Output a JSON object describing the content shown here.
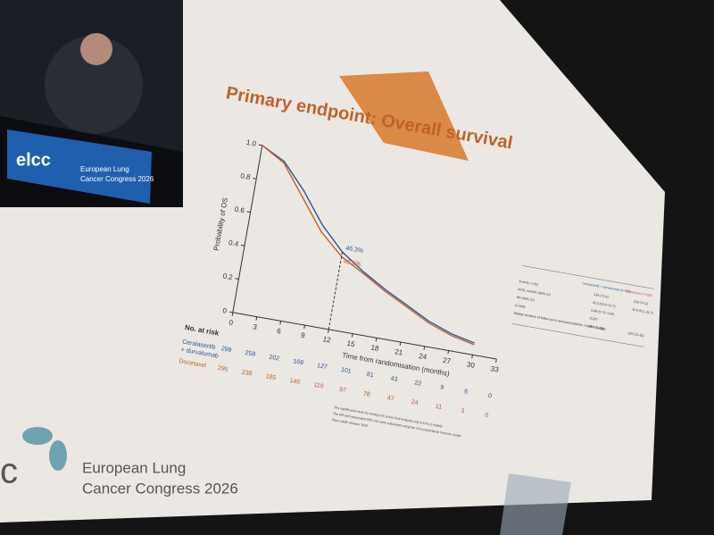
{
  "speaker_screen": {
    "logo": "elcc",
    "logo_text": [
      "European Lung",
      "Cancer Congress 2026"
    ]
  },
  "slide": {
    "title": "Primary endpoint: Overall survival",
    "footnotes": [
      "The significance level for testing OS at this final analysis was 4.15% (2-sided)",
      "The HR and associated 95% CIs were calculated using the Cox proportional hazards model",
      "Data cutoff: October 2025"
    ],
    "logo_text": [
      "European Lung",
      "Cancer Congress 2026"
    ]
  },
  "chart_data": {
    "type": "line",
    "ylabel": "Probability of OS",
    "xlabel": "Time from randomisation (months)",
    "x": [
      0,
      3,
      6,
      9,
      12,
      15,
      18,
      21,
      24,
      27,
      30,
      33
    ],
    "xlim": [
      0,
      33
    ],
    "xticks": [
      0,
      3,
      6,
      9,
      12,
      15,
      18,
      21,
      24,
      27,
      30,
      33
    ],
    "ylim": [
      0,
      1
    ],
    "yticks": [
      0,
      0.2,
      0.4,
      0.6,
      0.8,
      {
        "value": 1,
        "label": "1.0"
      }
    ],
    "series": [
      {
        "name": "Ceralasertib + durvalumab",
        "color": "#2f5597",
        "values": [
          1,
          0.93,
          0.78,
          0.6,
          0.463,
          0.37,
          0.29,
          0.22,
          0.15,
          0.1,
          0.07,
          null
        ]
      },
      {
        "name": "Docetaxel",
        "color": "#c0622a",
        "values": [
          1,
          0.92,
          0.74,
          0.56,
          0.436,
          0.36,
          0.28,
          0.21,
          0.14,
          0.09,
          0.06,
          null
        ]
      }
    ],
    "annotations": [
      {
        "label": "46.3%",
        "x": 12,
        "value": 0.463,
        "color": "#2f5597"
      },
      {
        "label": "43.6%",
        "x": 12,
        "value": 0.436,
        "color": "#c0622a"
      }
    ]
  },
  "risk_table": {
    "header": "No. at risk",
    "rows": [
      {
        "label": [
          "Ceralasertib",
          "+ durvalumab"
        ],
        "color": "#2f5597",
        "counts": [
          299,
          258,
          202,
          169,
          127,
          101,
          81,
          43,
          22,
          9,
          6,
          0
        ]
      },
      {
        "label": [
          "Docetaxel"
        ],
        "color": "#c0622a",
        "counts": [
          295,
          238,
          185,
          146,
          116,
          97,
          78,
          47,
          24,
          11,
          3,
          0
        ]
      }
    ]
  },
  "summary_table": {
    "columns": [
      "Ceralasertib + durvalumab (n=299)",
      "Docetaxel (n=295)"
    ],
    "rows": [
      {
        "label": "Events, n (%)",
        "cells": [
          "214 (71.6)",
          "219 (74.2)"
        ]
      },
      {
        "label": "mOS, months (95% CI)",
        "cells": [
          "11.5 (10.0–12.7)",
          "10.6 (9.1–11.7)"
        ]
      },
      {
        "label": "HR (95% CI)",
        "cells": [
          "0.88 (0.73–1.06)"
        ]
      },
      {
        "label": "p-value",
        "cells": [
          "0.287"
        ]
      },
      {
        "label": "Median duration of follow-up in censored patients, months (range)",
        "cells": [
          "19.3 (0–32)",
          "19.5 (0–31)"
        ]
      }
    ]
  }
}
